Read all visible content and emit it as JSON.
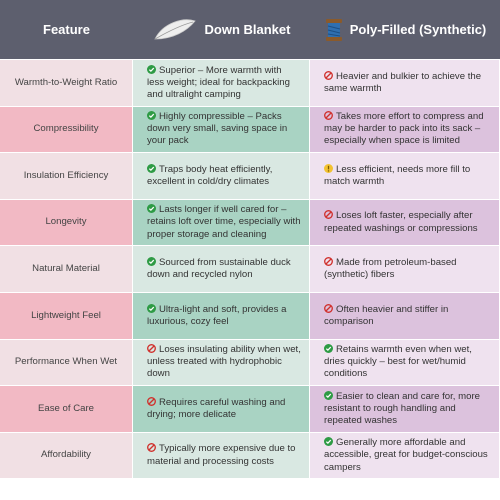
{
  "header": [
    "Feature",
    "Down Blanket",
    "Poly-Filled (Synthetic)"
  ],
  "rows": [
    [
      "Warmth-to-Weight Ratio",
      "Superior – More warmth with less weight; ideal for backpacking and ultralight camping",
      "Heavier and bulkier to achieve the same warmth"
    ],
    [
      "Compressibility",
      "Highly compressible – Packs down very small, saving space in your pack",
      "Takes more effort to compress and may be harder to pack into its sack – especially when space is limited"
    ],
    [
      "Insulation Efficiency",
      "Traps body heat efficiently, excellent in cold/dry climates",
      "Less efficient, needs more fill to match warmth"
    ],
    [
      "Longevity",
      "Lasts longer if well cared for – retains loft over time, especially with proper storage and cleaning",
      "Loses loft faster, especially after repeated washings or compressions"
    ],
    [
      "Natural Material",
      "Sourced from sustainable duck down and recycled nylon",
      "Made from petroleum-based (synthetic) fibers"
    ],
    [
      "Lightweight Feel",
      "Ultra-light and soft, provides a luxurious, cozy feel",
      "Often heavier and stiffer in comparison"
    ],
    [
      "Performance When Wet",
      "Loses insulating ability when wet, unless treated with hydrophobic down",
      "Retains warmth even when wet, dries quickly – best for wet/humid conditions"
    ],
    [
      "Ease of Care",
      "Requires careful washing and drying; more delicate",
      "Easier to clean and care for, more resistant to rough handling and repeated washes"
    ],
    [
      "Affordability",
      "Typically more expensive due to material and processing costs",
      "Generally more affordable and accessible, great for budget-conscious campers"
    ]
  ]
}
